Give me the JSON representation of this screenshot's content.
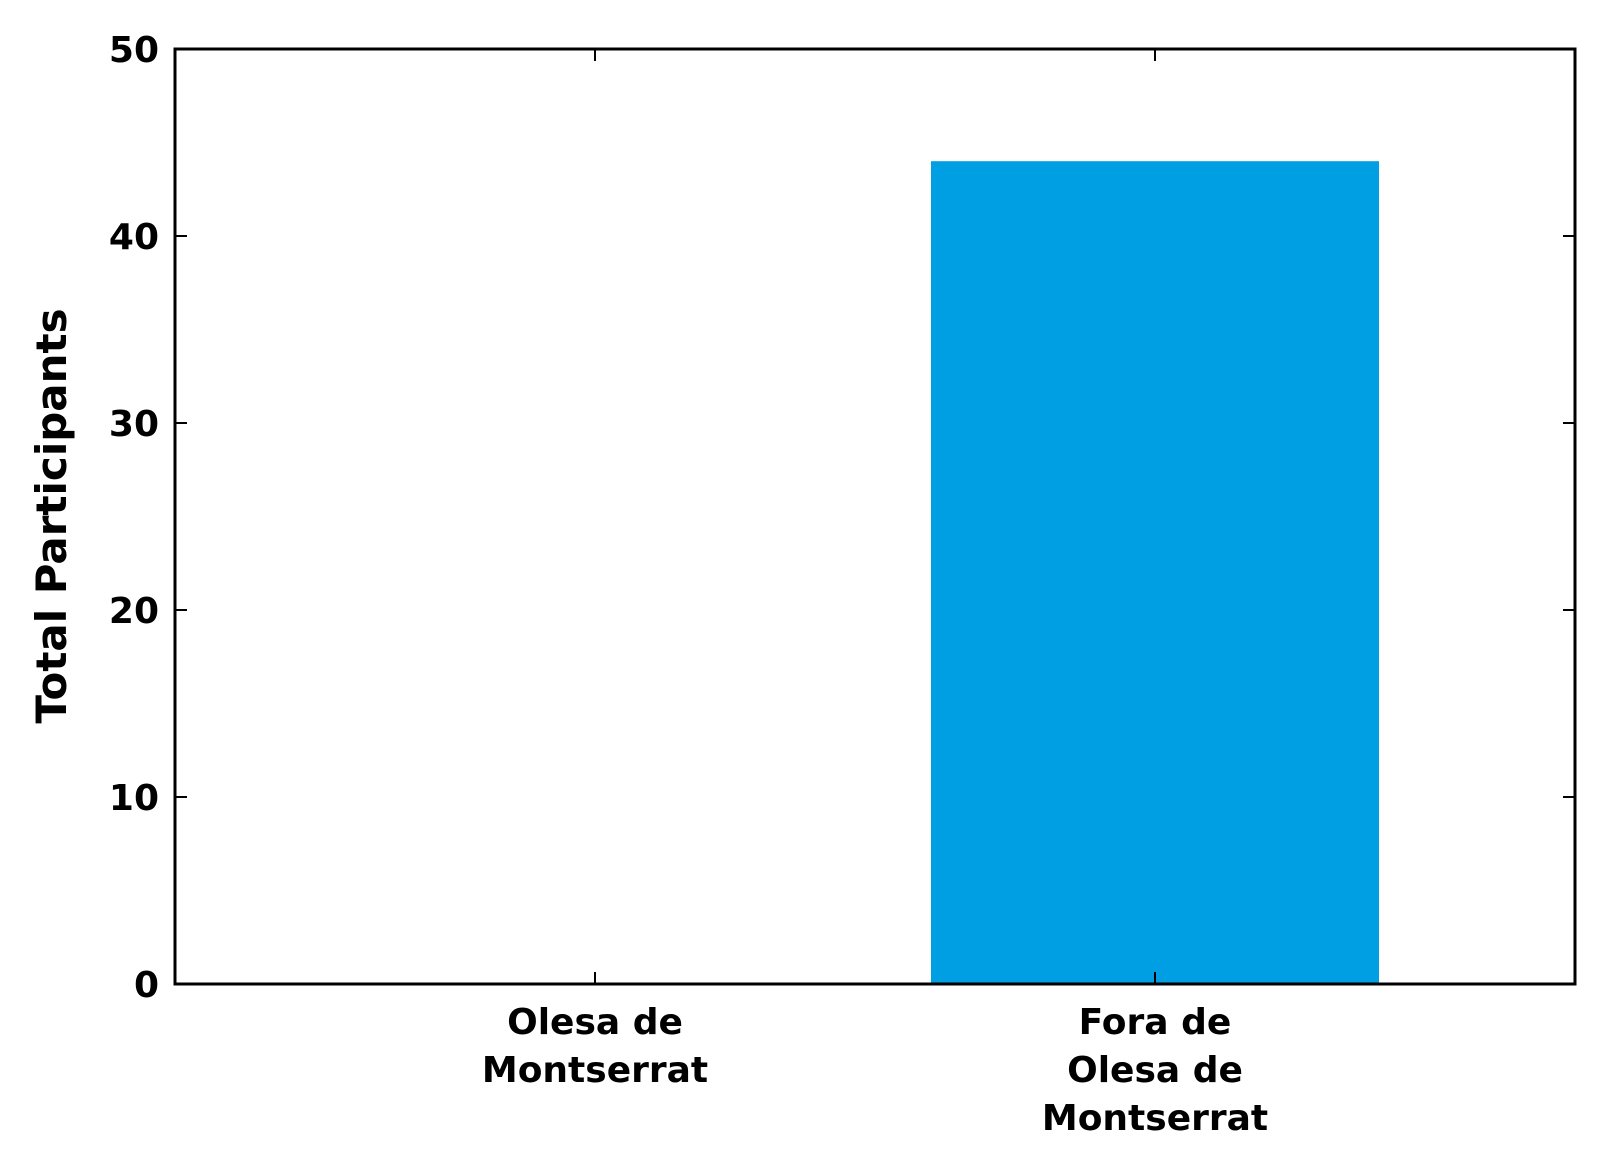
{
  "chart_data": {
    "type": "bar",
    "categories": [
      [
        "Olesa de",
        "Montserrat"
      ],
      [
        "Fora de",
        "Olesa de",
        "Montserrat"
      ]
    ],
    "values": [
      0,
      44
    ],
    "xlabel": "",
    "ylabel": "Total Participants",
    "ylim": [
      0,
      50
    ],
    "yticks": [
      0,
      10,
      20,
      30,
      40,
      50
    ],
    "grid": false,
    "colors": {
      "bar": "#009fe3",
      "axis": "#000000",
      "background": "#ffffff"
    }
  }
}
